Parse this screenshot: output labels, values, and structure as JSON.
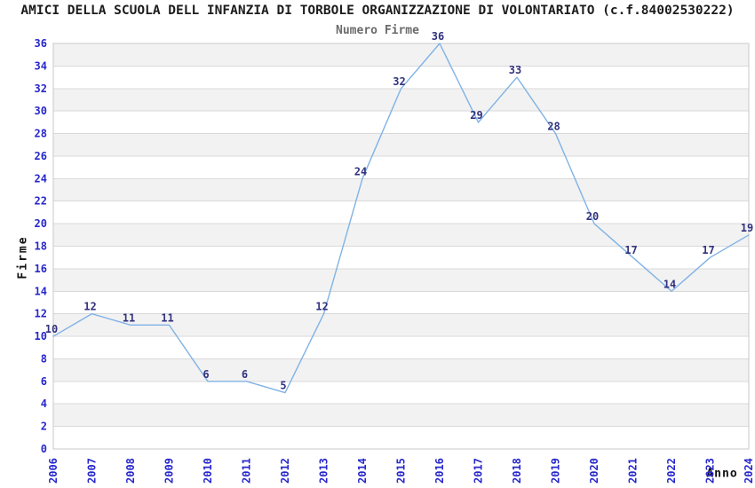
{
  "title": "AMICI DELLA SCUOLA DELL INFANZIA DI TORBOLE ORGANIZZAZIONE DI VOLONTARIATO (c.f.84002530222)",
  "chart_data": {
    "type": "line",
    "title": "Numero Firme",
    "xlabel": "Anno",
    "ylabel": "Firme",
    "categories": [
      "2006",
      "2007",
      "2008",
      "2009",
      "2010",
      "2011",
      "2012",
      "2013",
      "2014",
      "2015",
      "2016",
      "2017",
      "2018",
      "2019",
      "2020",
      "2021",
      "2022",
      "2023",
      "2024"
    ],
    "values": [
      10,
      12,
      11,
      11,
      6,
      6,
      5,
      12,
      24,
      32,
      36,
      29,
      33,
      28,
      20,
      17,
      14,
      17,
      19
    ],
    "ylim": [
      0,
      36
    ],
    "ytick_step": 2,
    "grid": true,
    "bands": "alternating horizontal 2-unit bands",
    "legend_position": "none",
    "colors": {
      "line": "#7fb2e5",
      "point_label": "#32327f",
      "tick_label": "#2727cc",
      "band_fill": "#f2f2f2",
      "gridline": "#d9d9d9",
      "plot_border": "#c9c9c9",
      "title": "#1c1c1c",
      "subtitle": "#6b6b6b"
    }
  }
}
